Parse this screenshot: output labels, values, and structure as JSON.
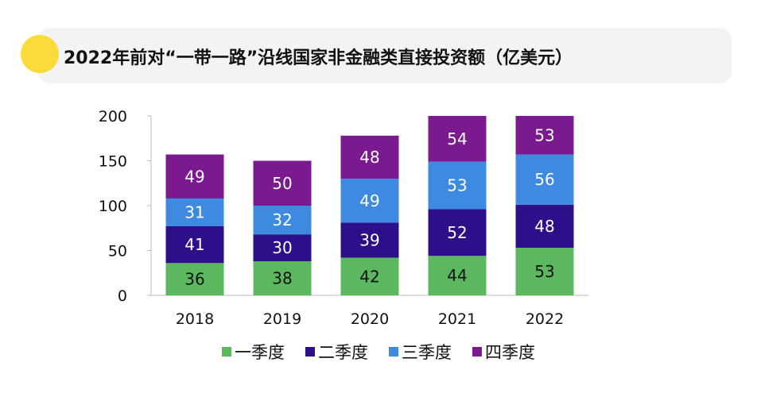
{
  "chart_data": {
    "type": "bar",
    "stacked": true,
    "title": "2022年前对“一带一路”沿线国家非金融类直接投资额（亿美元）",
    "categories": [
      "2018",
      "2019",
      "2020",
      "2021",
      "2022"
    ],
    "series": [
      {
        "name": "一季度",
        "values": [
          36,
          38,
          42,
          44,
          53
        ],
        "color": "#5cb85f",
        "label_color": "#111111"
      },
      {
        "name": "二季度",
        "values": [
          41,
          30,
          39,
          52,
          48
        ],
        "color": "#2e0f8a",
        "label_color": "#ffffff"
      },
      {
        "name": "三季度",
        "values": [
          31,
          32,
          49,
          53,
          56
        ],
        "color": "#3d8ae0",
        "label_color": "#ffffff"
      },
      {
        "name": "四季度",
        "values": [
          49,
          50,
          48,
          54,
          53
        ],
        "color": "#7b1a8e",
        "label_color": "#ffffff"
      }
    ],
    "ylim": [
      0,
      200
    ],
    "yticks": [
      0,
      50,
      100,
      150,
      200
    ],
    "grid": false,
    "legend": "bottom",
    "xlabel": "",
    "ylabel": ""
  },
  "accent_dot_color": "#fbdb3a"
}
